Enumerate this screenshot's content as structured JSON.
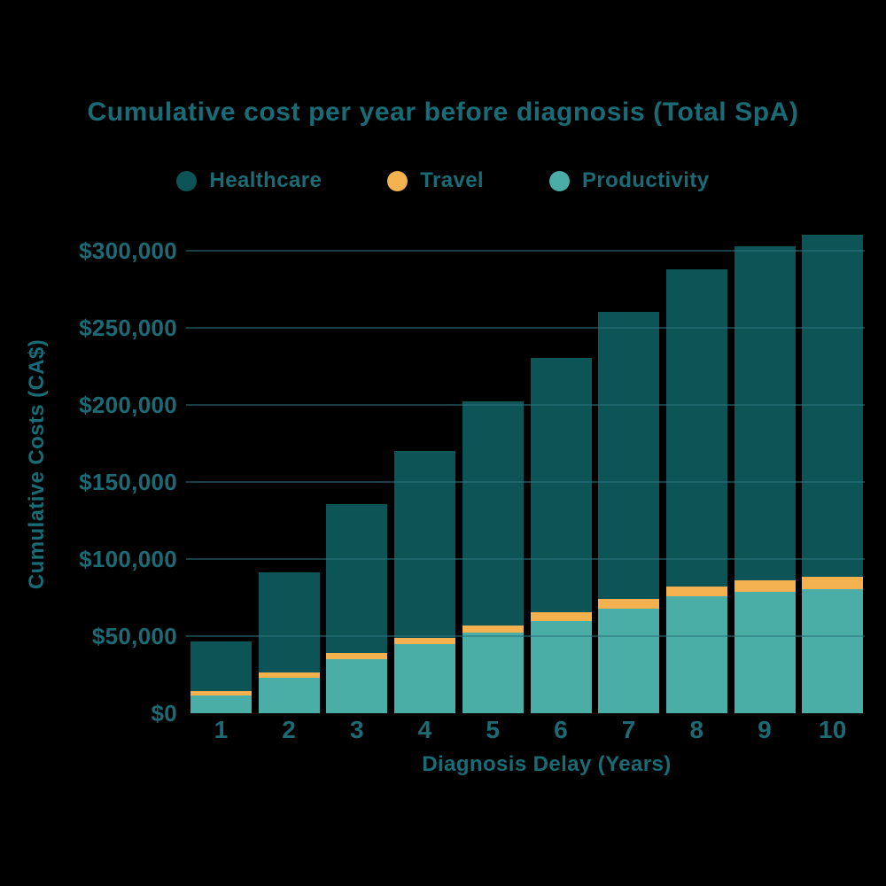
{
  "colors": {
    "background": "#000000",
    "text_teal": "#196b76",
    "tick_text": "#1d6974",
    "gridline": "#2e737b",
    "healthcare": "#0d5457",
    "travel": "#f3b14f",
    "productivity": "#4aada6"
  },
  "chart_data": {
    "type": "bar",
    "stacked": true,
    "title": "Cumulative cost per year before diagnosis (Total SpA)",
    "xlabel": "Diagnosis Delay (Years)",
    "ylabel": "Cumulative Costs (CA$)",
    "categories": [
      "1",
      "2",
      "3",
      "4",
      "5",
      "6",
      "7",
      "8",
      "9",
      "10"
    ],
    "series": [
      {
        "name": "Healthcare",
        "color": "#0d5457",
        "values": [
          32200,
          65100,
          96500,
          121000,
          145200,
          165000,
          186200,
          205400,
          216800,
          221800
        ]
      },
      {
        "name": "Travel",
        "color": "#f3b14f",
        "values": [
          2900,
          3400,
          3700,
          4200,
          4700,
          5700,
          6300,
          6800,
          7300,
          8000
        ]
      },
      {
        "name": "Productivity",
        "color": "#4aada6",
        "values": [
          11500,
          23000,
          35300,
          44700,
          52200,
          59800,
          68000,
          75600,
          78900,
          80500
        ]
      }
    ],
    "stack_order_bottom_to_top": [
      "Productivity",
      "Travel",
      "Healthcare"
    ],
    "y_ticks": [
      {
        "label": "$0",
        "value": 0
      },
      {
        "label": "$50,000",
        "value": 50000
      },
      {
        "label": "$100,000",
        "value": 100000
      },
      {
        "label": "$150,000",
        "value": 150000
      },
      {
        "label": "$200,000",
        "value": 200000
      },
      {
        "label": "$250,000",
        "value": 250000
      },
      {
        "label": "$300,000",
        "value": 300000
      }
    ],
    "ylim": [
      0,
      315000
    ],
    "grid": true,
    "legend_position": "top"
  }
}
